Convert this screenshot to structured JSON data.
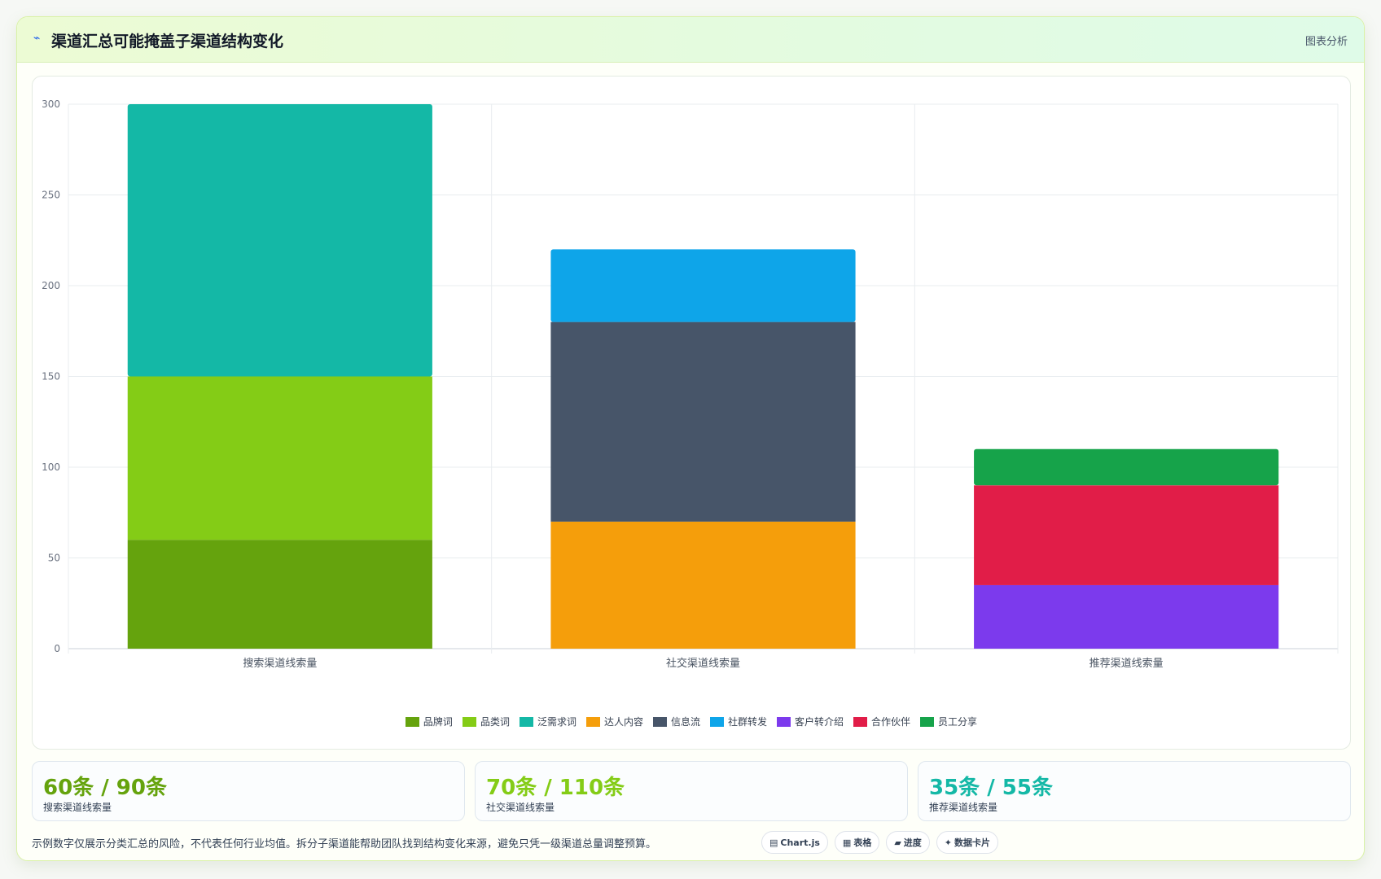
{
  "header": {
    "icon": "trend-icon",
    "icon_glyph": "⌁",
    "title": "渠道汇总可能掩盖子渠道结构变化",
    "tag": "图表分析"
  },
  "chart_data": {
    "type": "bar",
    "stacked": true,
    "categories": [
      "搜索渠道线索量",
      "社交渠道线索量",
      "推荐渠道线索量"
    ],
    "ylim": [
      0,
      300
    ],
    "yticks": [
      0,
      50,
      100,
      150,
      200,
      250,
      300
    ],
    "grid": true,
    "legend_position": "bottom",
    "series": [
      {
        "name": "品牌词",
        "color": "#65a30d",
        "values": [
          60,
          0,
          0
        ]
      },
      {
        "name": "品类词",
        "color": "#84cc16",
        "values": [
          90,
          0,
          0
        ]
      },
      {
        "name": "泛需求词",
        "color": "#14b8a6",
        "values": [
          150,
          0,
          0
        ]
      },
      {
        "name": "达人内容",
        "color": "#f59e0b",
        "values": [
          0,
          70,
          0
        ]
      },
      {
        "name": "信息流",
        "color": "#475569",
        "values": [
          0,
          110,
          0
        ]
      },
      {
        "name": "社群转发",
        "color": "#0ea5e9",
        "values": [
          0,
          40,
          0
        ]
      },
      {
        "name": "客户转介绍",
        "color": "#7c3aed",
        "values": [
          0,
          0,
          35
        ]
      },
      {
        "name": "合作伙伴",
        "color": "#e11d48",
        "values": [
          0,
          0,
          55
        ]
      },
      {
        "name": "员工分享",
        "color": "#16a34a",
        "values": [
          0,
          0,
          20
        ]
      }
    ]
  },
  "stats": [
    {
      "value": "60条 / 90条",
      "label": "搜索渠道线索量",
      "color": "#65a30d"
    },
    {
      "value": "70条 / 110条",
      "label": "社交渠道线索量",
      "color": "#84cc16"
    },
    {
      "value": "35条 / 55条",
      "label": "推荐渠道线索量",
      "color": "#14b8a6"
    }
  ],
  "footer": {
    "note": "示例数字仅展示分类汇总的风险，不代表任何行业均值。拆分子渠道能帮助团队找到结构变化来源，避免只凭一级渠道总量调整预算。",
    "chips": [
      {
        "icon": "chart-icon",
        "glyph": "▤",
        "label": "Chart.js"
      },
      {
        "icon": "table-icon",
        "glyph": "▦",
        "label": "表格"
      },
      {
        "icon": "progress-icon",
        "glyph": "▰",
        "label": "进度"
      },
      {
        "icon": "data-card-icon",
        "glyph": "✦",
        "label": "数据卡片"
      }
    ]
  }
}
